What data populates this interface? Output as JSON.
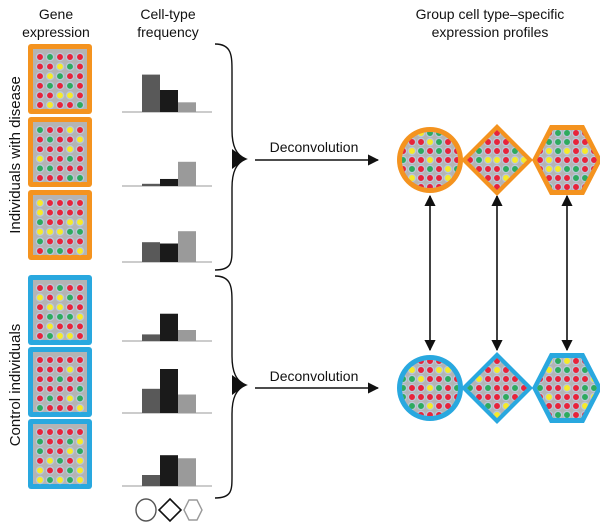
{
  "headers": {
    "gene_expression": [
      "Gene",
      "expression"
    ],
    "celltype_frequency": [
      "Cell-type",
      "frequency"
    ],
    "group_profiles": [
      "Group cell type–specific",
      "expression profiles"
    ]
  },
  "groups": [
    {
      "key": "disease",
      "label": "Individuals with disease",
      "border_color": "#f4931f",
      "action_label": "Deconvolution",
      "samples": [
        {
          "bars": [
            0.85,
            0.5,
            0.22
          ]
        },
        {
          "bars": [
            0.05,
            0.16,
            0.55
          ]
        },
        {
          "bars": [
            0.45,
            0.42,
            0.7
          ]
        }
      ]
    },
    {
      "key": "control",
      "label": "Control individuals",
      "border_color": "#29a8df",
      "action_label": "Deconvolution",
      "samples": [
        {
          "bars": [
            0.15,
            0.62,
            0.25
          ]
        },
        {
          "bars": [
            0.55,
            1.0,
            0.42
          ]
        },
        {
          "bars": [
            0.25,
            0.7,
            0.63
          ]
        }
      ]
    }
  ],
  "bar_colors": [
    "#595959",
    "#1a1a1a",
    "#9a9a9a"
  ],
  "cell_types": [
    "circle",
    "diamond",
    "hexagon"
  ],
  "dot_colors": {
    "red": "#e8233a",
    "green": "#2eaa5e",
    "yellow": "#f6ea2a",
    "grid_bg": "#b4b4b4",
    "ring": "#b9c7d9"
  }
}
